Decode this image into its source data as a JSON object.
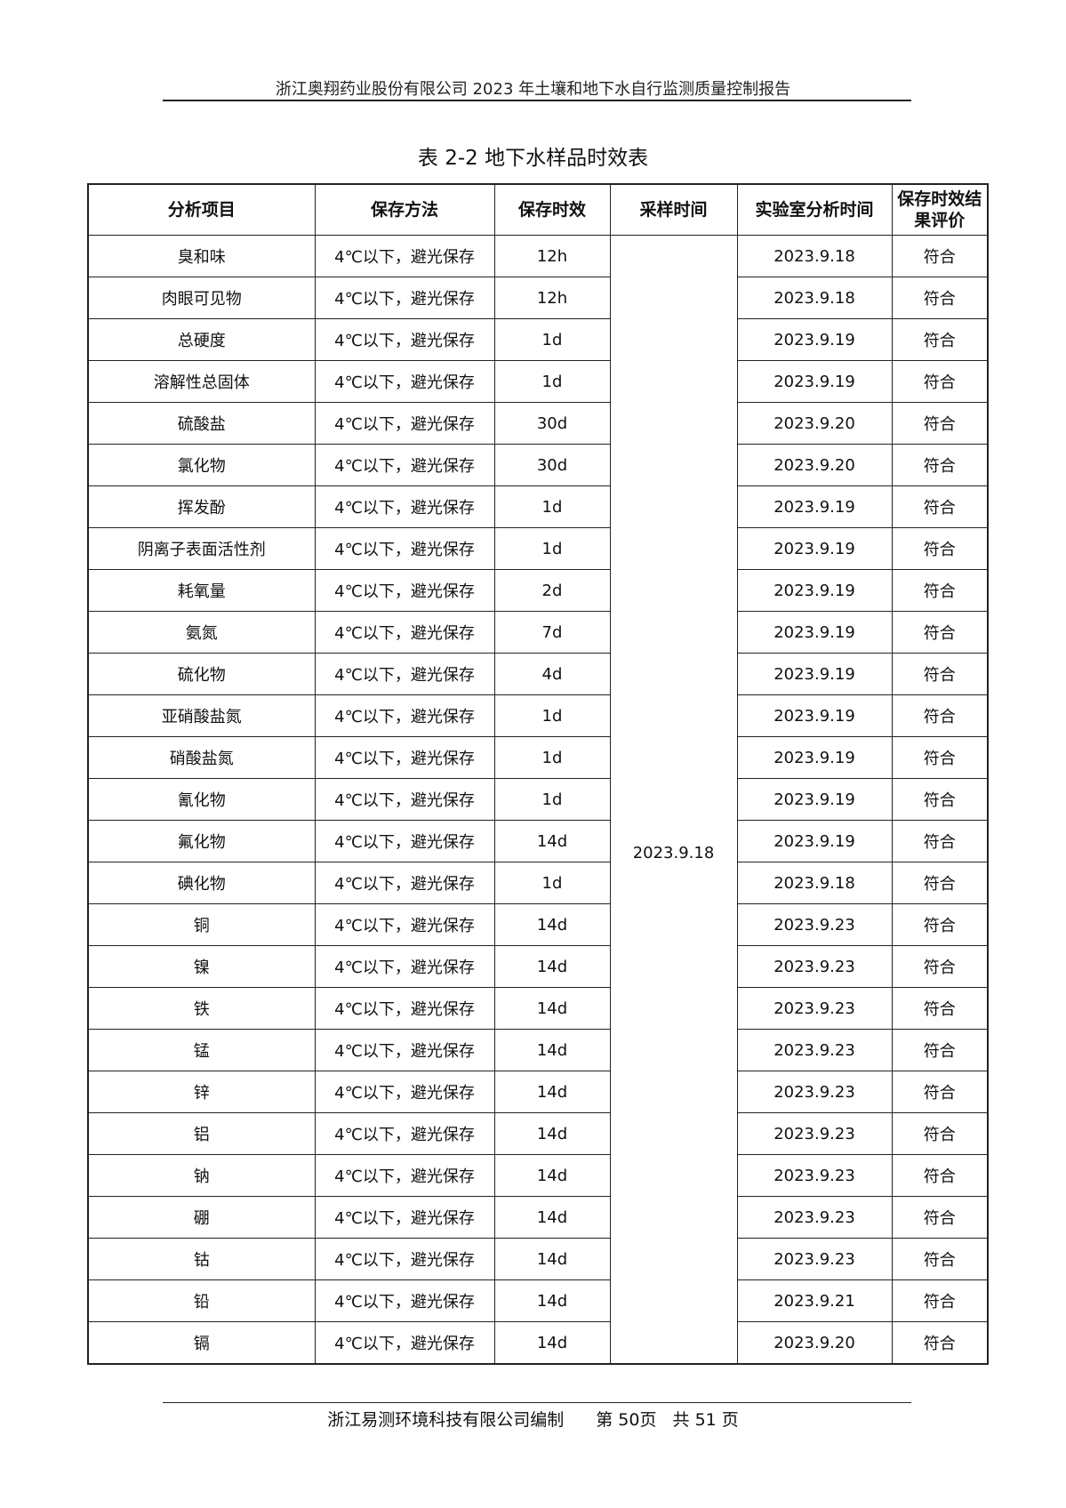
{
  "header": {
    "text": "浙江奥翔药业股份有限公司 2023 年土壤和地下水自行监测质量控制报告"
  },
  "title": "表 2-2  地下水样品时效表",
  "table": {
    "columns": [
      "分析项目",
      "保存方法",
      "保存时效",
      "采样时间",
      "实验室分析时间",
      "保存时效结果评价"
    ],
    "sampling_date": "2023.9.18",
    "rows": [
      {
        "item": "臭和味",
        "method": "4℃以下，避光保存",
        "limit": "12h",
        "lab": "2023.9.18",
        "eval": "符合"
      },
      {
        "item": "肉眼可见物",
        "method": "4℃以下，避光保存",
        "limit": "12h",
        "lab": "2023.9.18",
        "eval": "符合"
      },
      {
        "item": "总硬度",
        "method": "4℃以下，避光保存",
        "limit": "1d",
        "lab": "2023.9.19",
        "eval": "符合"
      },
      {
        "item": "溶解性总固体",
        "method": "4℃以下，避光保存",
        "limit": "1d",
        "lab": "2023.9.19",
        "eval": "符合"
      },
      {
        "item": "硫酸盐",
        "method": "4℃以下，避光保存",
        "limit": "30d",
        "lab": "2023.9.20",
        "eval": "符合"
      },
      {
        "item": "氯化物",
        "method": "4℃以下，避光保存",
        "limit": "30d",
        "lab": "2023.9.20",
        "eval": "符合"
      },
      {
        "item": "挥发酚",
        "method": "4℃以下，避光保存",
        "limit": "1d",
        "lab": "2023.9.19",
        "eval": "符合"
      },
      {
        "item": "阴离子表面活性剂",
        "method": "4℃以下，避光保存",
        "limit": "1d",
        "lab": "2023.9.19",
        "eval": "符合"
      },
      {
        "item": "耗氧量",
        "method": "4℃以下，避光保存",
        "limit": "2d",
        "lab": "2023.9.19",
        "eval": "符合"
      },
      {
        "item": "氨氮",
        "method": "4℃以下，避光保存",
        "limit": "7d",
        "lab": "2023.9.19",
        "eval": "符合"
      },
      {
        "item": "硫化物",
        "method": "4℃以下，避光保存",
        "limit": "4d",
        "lab": "2023.9.19",
        "eval": "符合"
      },
      {
        "item": "亚硝酸盐氮",
        "method": "4℃以下，避光保存",
        "limit": "1d",
        "lab": "2023.9.19",
        "eval": "符合"
      },
      {
        "item": "硝酸盐氮",
        "method": "4℃以下，避光保存",
        "limit": "1d",
        "lab": "2023.9.19",
        "eval": "符合"
      },
      {
        "item": "氰化物",
        "method": "4℃以下，避光保存",
        "limit": "1d",
        "lab": "2023.9.19",
        "eval": "符合"
      },
      {
        "item": "氟化物",
        "method": "4℃以下，避光保存",
        "limit": "14d",
        "lab": "2023.9.19",
        "eval": "符合"
      },
      {
        "item": "碘化物",
        "method": "4℃以下，避光保存",
        "limit": "1d",
        "lab": "2023.9.18",
        "eval": "符合"
      },
      {
        "item": "铜",
        "method": "4℃以下，避光保存",
        "limit": "14d",
        "lab": "2023.9.23",
        "eval": "符合"
      },
      {
        "item": "镍",
        "method": "4℃以下，避光保存",
        "limit": "14d",
        "lab": "2023.9.23",
        "eval": "符合"
      },
      {
        "item": "铁",
        "method": "4℃以下，避光保存",
        "limit": "14d",
        "lab": "2023.9.23",
        "eval": "符合"
      },
      {
        "item": "锰",
        "method": "4℃以下，避光保存",
        "limit": "14d",
        "lab": "2023.9.23",
        "eval": "符合"
      },
      {
        "item": "锌",
        "method": "4℃以下，避光保存",
        "limit": "14d",
        "lab": "2023.9.23",
        "eval": "符合"
      },
      {
        "item": "铝",
        "method": "4℃以下，避光保存",
        "limit": "14d",
        "lab": "2023.9.23",
        "eval": "符合"
      },
      {
        "item": "钠",
        "method": "4℃以下，避光保存",
        "limit": "14d",
        "lab": "2023.9.23",
        "eval": "符合"
      },
      {
        "item": "硼",
        "method": "4℃以下，避光保存",
        "limit": "14d",
        "lab": "2023.9.23",
        "eval": "符合"
      },
      {
        "item": "钴",
        "method": "4℃以下，避光保存",
        "limit": "14d",
        "lab": "2023.9.23",
        "eval": "符合"
      },
      {
        "item": "铅",
        "method": "4℃以下，避光保存",
        "limit": "14d",
        "lab": "2023.9.21",
        "eval": "符合"
      },
      {
        "item": "镉",
        "method": "4℃以下，避光保存",
        "limit": "14d",
        "lab": "2023.9.20",
        "eval": "符合"
      }
    ]
  },
  "footer": {
    "company": "浙江易测环境科技有限公司编制",
    "page": "第 50页",
    "total": "共 51 页"
  }
}
